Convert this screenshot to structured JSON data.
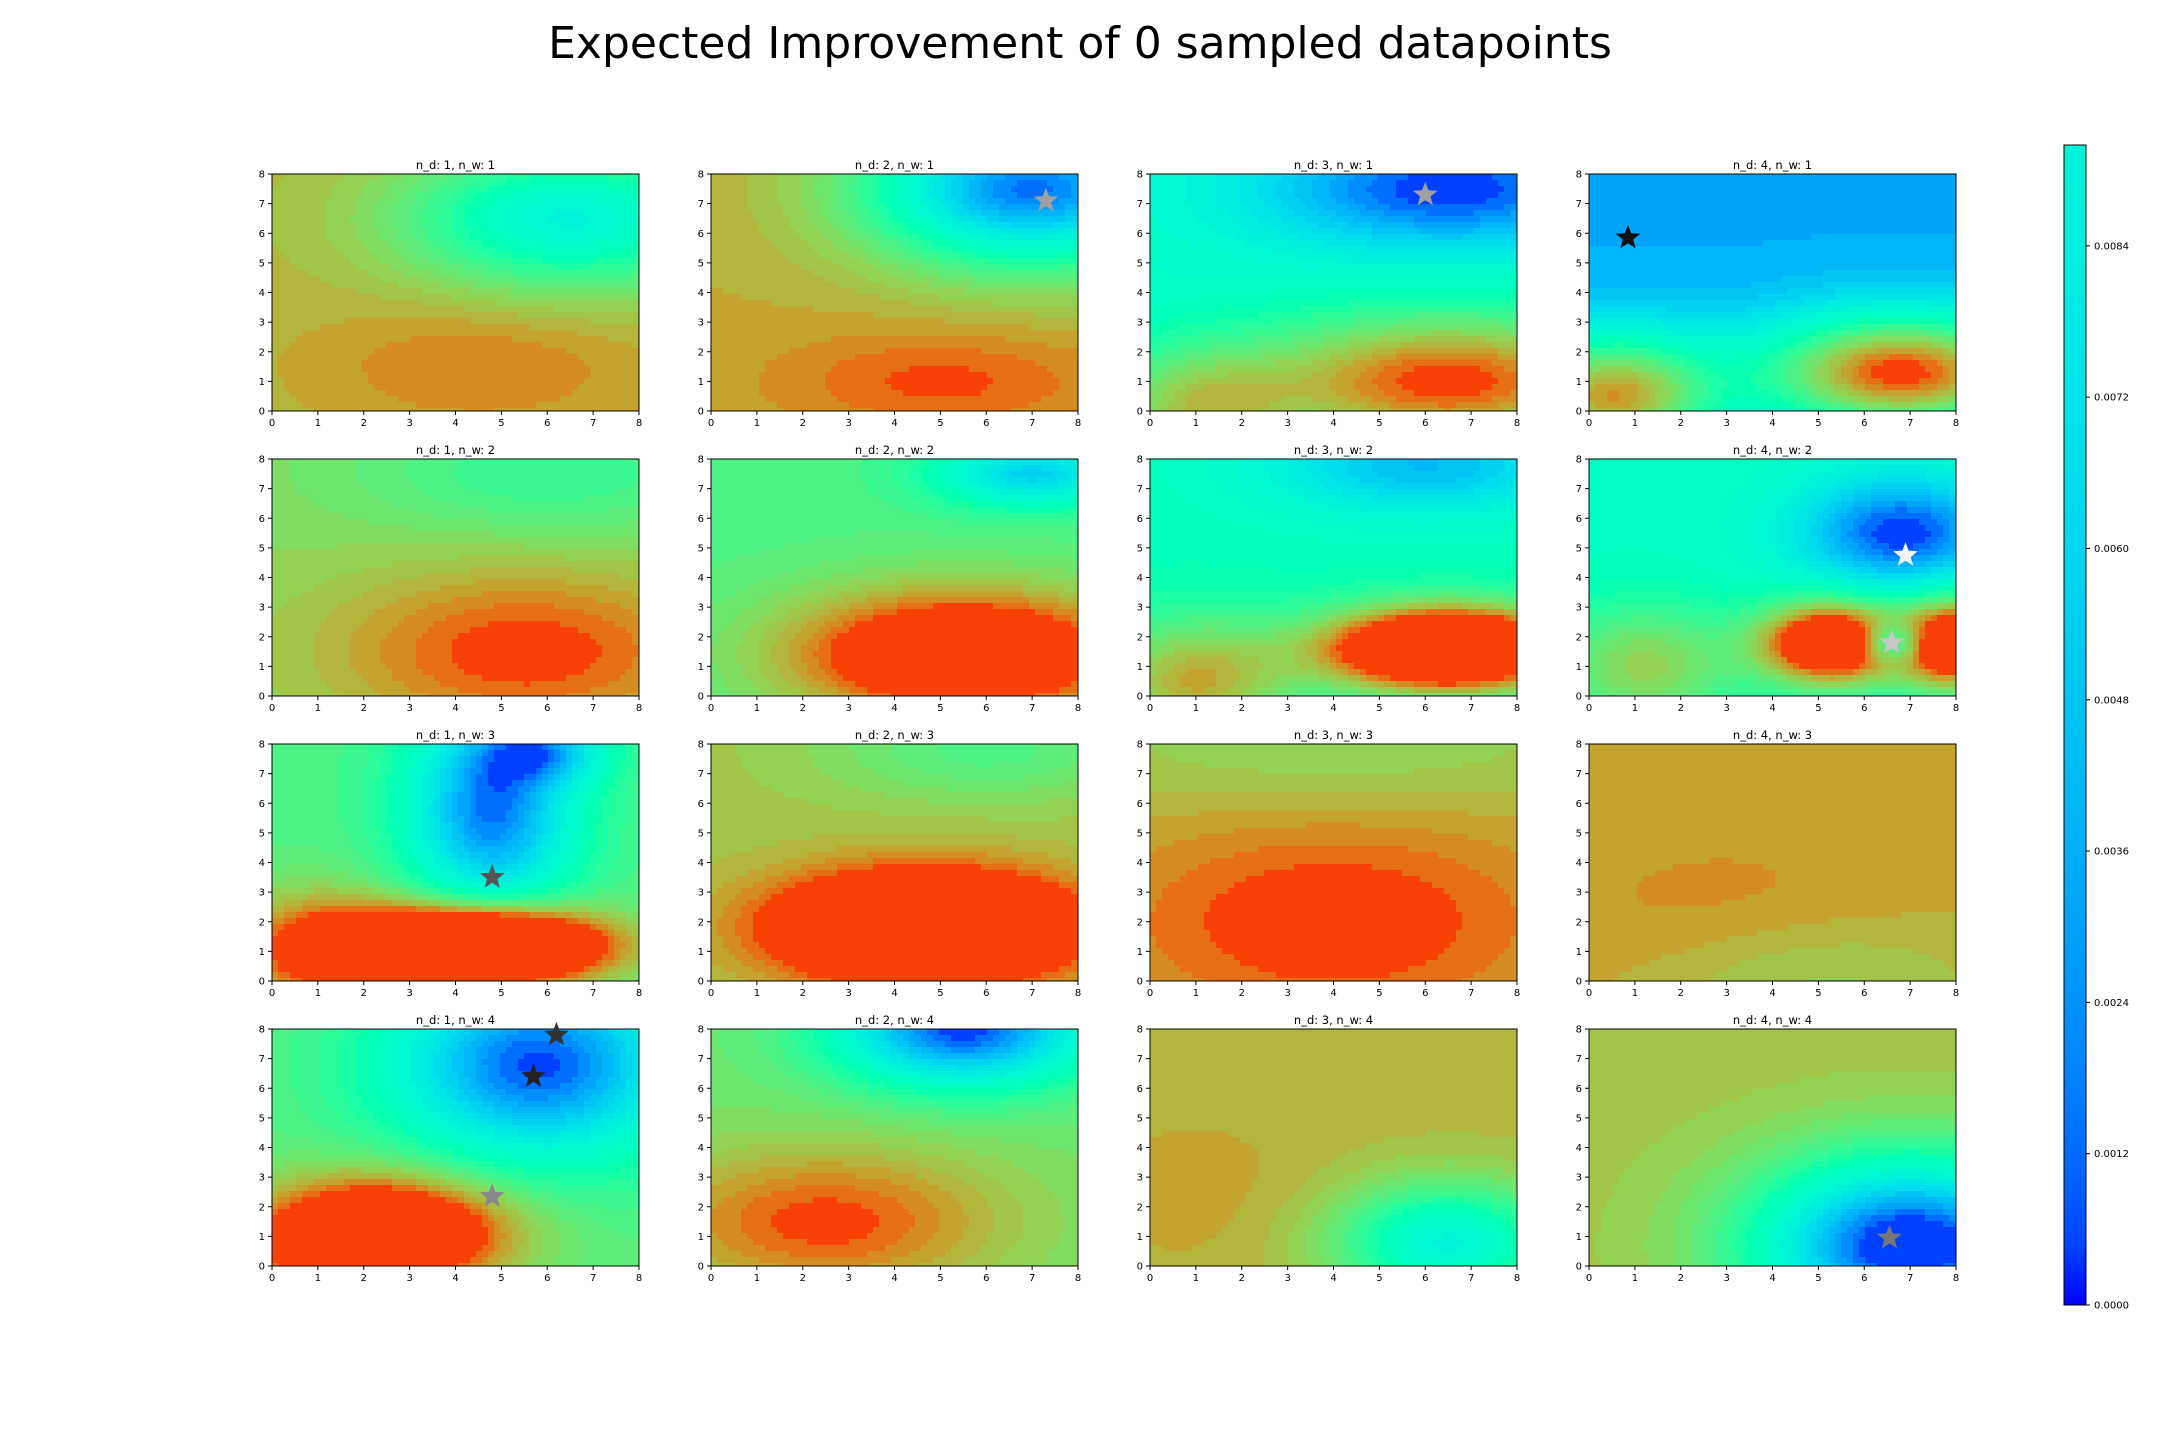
{
  "figure": {
    "title": "Expected Improvement of 0 sampled datapoints"
  },
  "chart_data": {
    "type": "heatmap",
    "layout": {
      "rows": 4,
      "cols": 4
    },
    "colormap": "rainbow",
    "colorbar": {
      "range": [
        0.0,
        0.0092
      ],
      "ticks": [
        0.0,
        0.0012,
        0.0024,
        0.0036,
        0.0048,
        0.006,
        0.0072,
        0.0084
      ],
      "tick_labels": [
        "0.0000",
        "0.0012",
        "0.0024",
        "0.0036",
        "0.0048",
        "0.0060",
        "0.0072",
        "0.0084"
      ]
    },
    "xlim": [
      0,
      8
    ],
    "ylim": [
      0,
      8
    ],
    "xticks": [
      "0",
      "1",
      "2",
      "3",
      "4",
      "5",
      "6",
      "7",
      "8"
    ],
    "yticks": [
      "0",
      "1",
      "2",
      "3",
      "4",
      "5",
      "6",
      "7",
      "8"
    ],
    "panels": [
      {
        "title": "n_d: 1, n_w: 1",
        "base": 0.0078,
        "gaussians": [
          {
            "x": 6.5,
            "y": 6.5,
            "sx": 2.5,
            "sy": 1.6,
            "a": -0.0045
          },
          {
            "x": 4.5,
            "y": 1.5,
            "sx": 2.5,
            "sy": 1.5,
            "a": 0.0008
          }
        ],
        "stars": []
      },
      {
        "title": "n_d: 2, n_w: 1",
        "base": 0.008,
        "gaussians": [
          {
            "x": 7,
            "y": 7.5,
            "sx": 2.5,
            "sy": 1.8,
            "a": -0.0075
          },
          {
            "x": 5,
            "y": 1,
            "sx": 2.5,
            "sy": 1.2,
            "a": 0.001
          }
        ],
        "stars": [
          {
            "x": 7.3,
            "y": 7.1,
            "color": "#a0a0a0"
          }
        ]
      },
      {
        "title": "n_d: 3, n_w: 1",
        "base": 0.004,
        "gaussians": [
          {
            "x": 6.5,
            "y": 7.5,
            "sx": 3,
            "sy": 1.5,
            "a": -0.004
          },
          {
            "x": 6.5,
            "y": 1,
            "sx": 3,
            "sy": 1.6,
            "a": 0.0052
          },
          {
            "x": 1,
            "y": 0,
            "sx": 1.5,
            "sy": 1.5,
            "a": 0.003
          }
        ],
        "stars": [
          {
            "x": 6.0,
            "y": 7.3,
            "color": "#a0a0a0"
          }
        ]
      },
      {
        "title": "n_d: 4, n_w: 1",
        "base": 0.0012,
        "gaussians": [
          {
            "x": 6.8,
            "y": 1.3,
            "sx": 2.2,
            "sy": 1.4,
            "a": 0.008
          },
          {
            "x": 0.5,
            "y": 0.5,
            "sx": 1.6,
            "sy": 1.5,
            "a": 0.007
          }
        ],
        "stars": [
          {
            "x": 0.85,
            "y": 5.85,
            "color": "#111111"
          }
        ]
      },
      {
        "title": "n_d: 1, n_w: 2",
        "base": 0.007,
        "gaussians": [
          {
            "x": 5.5,
            "y": 1.5,
            "sx": 3,
            "sy": 2,
            "a": 0.0022
          },
          {
            "x": 6,
            "y": 7.5,
            "sx": 3,
            "sy": 1.5,
            "a": -0.0015
          }
        ],
        "stars": []
      },
      {
        "title": "n_d: 2, n_w: 2",
        "base": 0.006,
        "gaussians": [
          {
            "x": 5.5,
            "y": 1.4,
            "sx": 2.8,
            "sy": 1.6,
            "a": 0.005
          },
          {
            "x": 7,
            "y": 7.5,
            "sx": 1.5,
            "sy": 0.8,
            "a": -0.004
          }
        ],
        "stars": []
      },
      {
        "title": "n_d: 3, n_w: 2",
        "base": 0.0045,
        "gaussians": [
          {
            "x": 6.5,
            "y": 1.6,
            "sx": 1.9,
            "sy": 1.0,
            "a": 0.009
          },
          {
            "x": 6,
            "y": 7.8,
            "sx": 2.5,
            "sy": 1.2,
            "a": -0.003
          },
          {
            "x": 1,
            "y": 0.5,
            "sx": 1.5,
            "sy": 1.5,
            "a": 0.0035
          }
        ],
        "stars": []
      },
      {
        "title": "n_d: 4, n_w: 2",
        "base": 0.0042,
        "gaussians": [
          {
            "x": 5.3,
            "y": 1.8,
            "sx": 1.1,
            "sy": 1.0,
            "a": 0.0075
          },
          {
            "x": 8,
            "y": 1.8,
            "sx": 0.9,
            "sy": 1.1,
            "a": 0.007
          },
          {
            "x": 6.8,
            "y": 5.5,
            "sx": 1.6,
            "sy": 1.4,
            "a": -0.0042
          },
          {
            "x": 6.6,
            "y": 1.8,
            "sx": 0.5,
            "sy": 0.5,
            "a": -0.004
          },
          {
            "x": 1.2,
            "y": 1,
            "sx": 1.5,
            "sy": 1.5,
            "a": 0.003
          }
        ],
        "stars": [
          {
            "x": 6.9,
            "y": 4.75,
            "color": "#f2f2f2"
          },
          {
            "x": 6.6,
            "y": 1.8,
            "color": "#c8c8c8"
          }
        ]
      },
      {
        "title": "n_d: 1, n_w: 3",
        "base": 0.006,
        "gaussians": [
          {
            "x": 4.5,
            "y": 1.2,
            "sx": 1.9,
            "sy": 0.9,
            "a": 0.0095
          },
          {
            "x": 4.8,
            "y": 5.8,
            "sx": 1.3,
            "sy": 2.5,
            "a": -0.0055
          },
          {
            "x": 6,
            "y": 7.8,
            "sx": 1,
            "sy": 0.8,
            "a": -0.003
          },
          {
            "x": 1,
            "y": 1,
            "sx": 1.5,
            "sy": 1.5,
            "a": 0.003
          }
        ],
        "stars": [
          {
            "x": 4.8,
            "y": 3.5,
            "color": "#555555"
          }
        ]
      },
      {
        "title": "n_d: 2, n_w: 3",
        "base": 0.0075,
        "gaussians": [
          {
            "x": 4.7,
            "y": 1.8,
            "sx": 2.3,
            "sy": 1.3,
            "a": 0.0055
          },
          {
            "x": 6,
            "y": 7.8,
            "sx": 2.5,
            "sy": 1.2,
            "a": -0.0015
          }
        ],
        "stars": []
      },
      {
        "title": "n_d: 3, n_w: 3",
        "base": 0.0078,
        "gaussians": [
          {
            "x": 4,
            "y": 2,
            "sx": 3.5,
            "sy": 2.5,
            "a": 0.0015
          },
          {
            "x": 4,
            "y": 8,
            "sx": 4,
            "sy": 1.5,
            "a": -0.0008
          }
        ],
        "stars": []
      },
      {
        "title": "n_d: 4, n_w: 3",
        "base": 0.008,
        "gaussians": [
          {
            "x": 5,
            "y": 0,
            "sx": 2.5,
            "sy": 1.5,
            "a": -0.0008
          },
          {
            "x": 3,
            "y": 2.5,
            "sx": 3,
            "sy": 2,
            "a": 0.0004
          }
        ],
        "stars": []
      },
      {
        "title": "n_d: 1, n_w: 4",
        "base": 0.0062,
        "gaussians": [
          {
            "x": 5.8,
            "y": 6.8,
            "sx": 2.3,
            "sy": 2.3,
            "a": -0.006
          },
          {
            "x": 2.8,
            "y": 1.2,
            "sx": 1.8,
            "sy": 1.3,
            "a": 0.005
          },
          {
            "x": 1,
            "y": 0.5,
            "sx": 1.5,
            "sy": 1.5,
            "a": 0.002
          }
        ],
        "stars": [
          {
            "x": 6.2,
            "y": 7.8,
            "color": "#333333"
          },
          {
            "x": 5.7,
            "y": 6.4,
            "color": "#222222"
          },
          {
            "x": 4.8,
            "y": 2.35,
            "color": "#888888"
          }
        ]
      },
      {
        "title": "n_d: 2, n_w: 4",
        "base": 0.0066,
        "gaussians": [
          {
            "x": 5.5,
            "y": 8,
            "sx": 2,
            "sy": 1.4,
            "a": -0.0065
          },
          {
            "x": 2.5,
            "y": 1.5,
            "sx": 2.8,
            "sy": 1.8,
            "a": 0.0025
          }
        ],
        "stars": []
      },
      {
        "title": "n_d: 3, n_w: 4",
        "base": 0.0078,
        "gaussians": [
          {
            "x": 6.5,
            "y": 0.8,
            "sx": 1.7,
            "sy": 1.4,
            "a": -0.0045
          },
          {
            "x": 1,
            "y": 2.5,
            "sx": 2,
            "sy": 2,
            "a": 0.0003
          }
        ],
        "stars": []
      },
      {
        "title": "n_d: 4, n_w: 4",
        "base": 0.0075,
        "gaussians": [
          {
            "x": 7,
            "y": 0.7,
            "sx": 2.4,
            "sy": 2.1,
            "a": -0.008
          }
        ],
        "stars": [
          {
            "x": 6.55,
            "y": 0.95,
            "color": "#777777"
          }
        ]
      }
    ]
  }
}
